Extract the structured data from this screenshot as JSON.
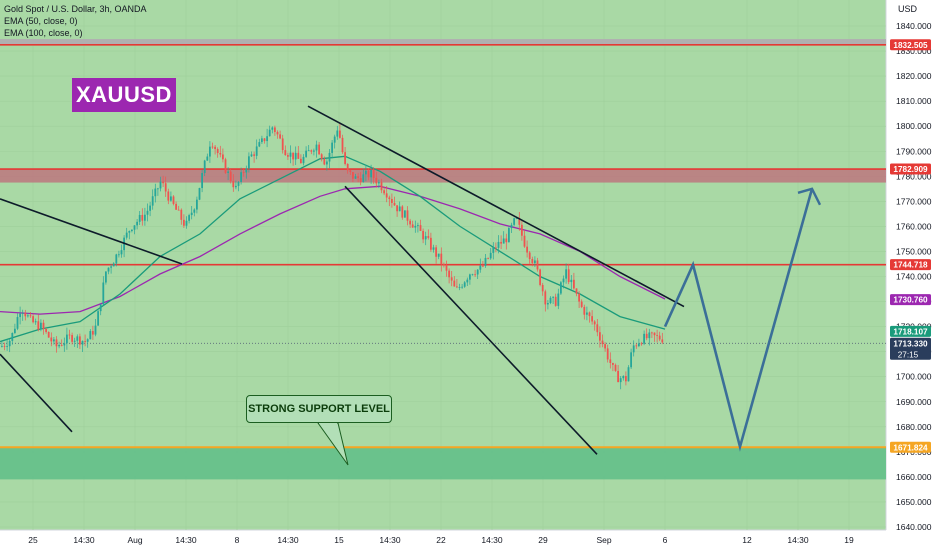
{
  "chart_header": {
    "title": "Gold Spot / U.S. Dollar, 3h, OANDA",
    "ema50": "EMA (50, close, 0)",
    "ema100": "EMA (100, close, 0)",
    "currency": "USD"
  },
  "logo_text": "XAUUSD",
  "callout_text": "STRONG SUPPORT LEVEL",
  "chart_data": {
    "type": "candlestick",
    "symbol": "XAUUSD",
    "timeframe": "3h",
    "ylim": [
      1640,
      1850
    ],
    "y_ticks": [
      1640,
      1650,
      1660,
      1670,
      1680,
      1690,
      1700,
      1710,
      1720,
      1730,
      1740,
      1750,
      1760,
      1770,
      1780,
      1790,
      1800,
      1810,
      1820,
      1830,
      1840
    ],
    "y_tick_labels": [
      "1640.000",
      "1650.000",
      "1660.000",
      "1670.000",
      "1680.000",
      "1690.000",
      "1700.000",
      "1710.000",
      "1720.000",
      "1730.000",
      "1740.000",
      "1750.000",
      "1760.000",
      "1770.000",
      "1780.000",
      "1790.000",
      "1800.000",
      "1810.000",
      "1820.000",
      "1830.000",
      "1840.000"
    ],
    "x_labels": [
      "25",
      "14:30",
      "Aug",
      "14:30",
      "8",
      "14:30",
      "15",
      "14:30",
      "22",
      "14:30",
      "29",
      "Sep",
      "6",
      "12",
      "14:30",
      "19"
    ],
    "price_path": [
      [
        0,
        1712
      ],
      [
        10,
        1715
      ],
      [
        20,
        1728
      ],
      [
        30,
        1722
      ],
      [
        40,
        1720
      ],
      [
        55,
        1712
      ],
      [
        70,
        1716
      ],
      [
        85,
        1714
      ],
      [
        95,
        1720
      ],
      [
        105,
        1742
      ],
      [
        115,
        1748
      ],
      [
        130,
        1760
      ],
      [
        145,
        1765
      ],
      [
        160,
        1778
      ],
      [
        170,
        1770
      ],
      [
        185,
        1760
      ],
      [
        195,
        1770
      ],
      [
        210,
        1795
      ],
      [
        222,
        1785
      ],
      [
        235,
        1775
      ],
      [
        248,
        1787
      ],
      [
        260,
        1793
      ],
      [
        272,
        1800
      ],
      [
        285,
        1790
      ],
      [
        300,
        1786
      ],
      [
        315,
        1793
      ],
      [
        325,
        1785
      ],
      [
        337,
        1800
      ],
      [
        345,
        1782
      ],
      [
        355,
        1779
      ],
      [
        370,
        1781
      ],
      [
        385,
        1774
      ],
      [
        395,
        1768
      ],
      [
        410,
        1762
      ],
      [
        425,
        1755
      ],
      [
        440,
        1746
      ],
      [
        455,
        1734
      ],
      [
        470,
        1742
      ],
      [
        480,
        1743
      ],
      [
        495,
        1752
      ],
      [
        505,
        1755
      ],
      [
        515,
        1763
      ],
      [
        525,
        1752
      ],
      [
        535,
        1744
      ],
      [
        545,
        1730
      ],
      [
        555,
        1730
      ],
      [
        565,
        1742
      ],
      [
        580,
        1728
      ],
      [
        595,
        1720
      ],
      [
        605,
        1710
      ],
      [
        615,
        1700
      ],
      [
        625,
        1699
      ],
      [
        632,
        1712
      ],
      [
        640,
        1715
      ],
      [
        652,
        1716
      ],
      [
        665,
        1715
      ]
    ],
    "ema50": [
      [
        0,
        1714
      ],
      [
        40,
        1719
      ],
      [
        80,
        1722
      ],
      [
        120,
        1733
      ],
      [
        160,
        1748
      ],
      [
        200,
        1757
      ],
      [
        240,
        1771
      ],
      [
        280,
        1779
      ],
      [
        320,
        1787
      ],
      [
        345,
        1788
      ],
      [
        380,
        1782
      ],
      [
        420,
        1772
      ],
      [
        460,
        1760
      ],
      [
        500,
        1750
      ],
      [
        540,
        1740
      ],
      [
        580,
        1733
      ],
      [
        620,
        1724
      ],
      [
        665,
        1719
      ]
    ],
    "ema100": [
      [
        0,
        1726
      ],
      [
        40,
        1725
      ],
      [
        80,
        1726
      ],
      [
        120,
        1732
      ],
      [
        160,
        1741
      ],
      [
        200,
        1748
      ],
      [
        240,
        1757
      ],
      [
        280,
        1765
      ],
      [
        320,
        1772
      ],
      [
        345,
        1775
      ],
      [
        380,
        1776
      ],
      [
        420,
        1772
      ],
      [
        460,
        1767
      ],
      [
        500,
        1761
      ],
      [
        540,
        1757
      ],
      [
        580,
        1750
      ],
      [
        620,
        1740
      ],
      [
        665,
        1731
      ]
    ],
    "resistance_lines": [
      {
        "label": "1832.505",
        "value": 1832.505,
        "color": "#e53935"
      },
      {
        "label": "1782.909",
        "value": 1782.909,
        "color": "#e53935"
      },
      {
        "label": "1744.718",
        "value": 1744.718,
        "color": "#e53935"
      }
    ],
    "resistance_zone": [
      1777.5,
      1782.909
    ],
    "support_line": {
      "label": "1671.824",
      "value": 1671.824,
      "color": "#f5a623"
    },
    "support_zone": [
      1659,
      1671.824
    ],
    "ema_labels": [
      {
        "label": "1730.760",
        "value": 1730.76,
        "color": "#9c27b0"
      },
      {
        "label": "1718.107",
        "value": 1718.107,
        "color": "#1a9b7b"
      }
    ],
    "current_price": {
      "label": "1713.330",
      "value": 1713.33,
      "countdown": "27:15",
      "color": "#2a3d5c"
    },
    "projection": [
      [
        665,
        1720
      ],
      [
        693,
        1744.7
      ],
      [
        740,
        1672
      ],
      [
        812,
        1775
      ]
    ],
    "channel_lines": [
      [
        [
          0,
          1771
        ],
        [
          182,
          1745
        ]
      ],
      [
        [
          0,
          1709
        ],
        [
          72,
          1678
        ]
      ],
      [
        [
          308,
          1808
        ],
        [
          684,
          1728
        ]
      ],
      [
        [
          345,
          1776
        ],
        [
          597,
          1669
        ]
      ]
    ]
  }
}
